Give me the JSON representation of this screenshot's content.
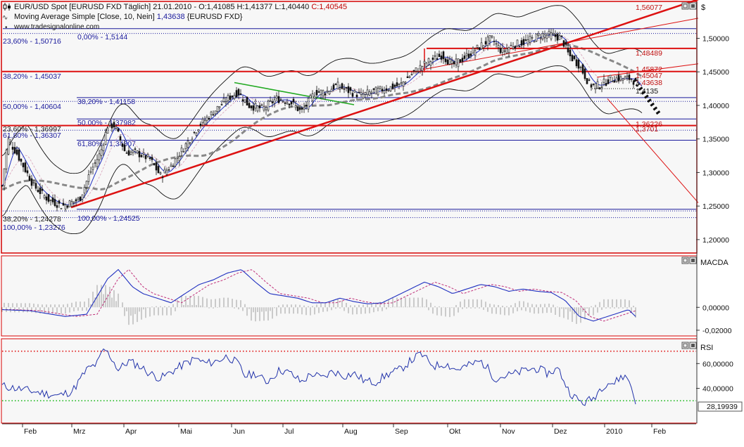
{
  "header": {
    "line1": "EUR/USD Spot [EURUSD FXD  Täglich] 21.01.2010 - O:1,41085 H:1,41377 L:1,40440 C:1,40545",
    "line1_prefix": "EUR/USD Spot [EURUSD FXD  Täglich] 21.01.2010 - O:1,41085 H:1,41377 L:1,40440 ",
    "line1_close": "C:1,40545",
    "line2": "Moving Average Simple [Close, 10, Nein] 1,43638 {EURUSD FXD}",
    "line2_prefix": "Moving Average Simple [Close, 10, Nein] ",
    "line2_value": "1,43638",
    "line2_suffix": " {EURUSD FXD}",
    "line3": "www.tradesignalonline.com"
  },
  "panels": {
    "price": {
      "axis_label": "$"
    },
    "macd": {
      "title": "MACDA"
    },
    "rsi": {
      "title": "RSI",
      "current_value": "28,19939"
    }
  },
  "colors": {
    "frame_red": "#d40000",
    "fib_blue": "#1a1a9c",
    "trend_red": "#dd1111",
    "green_line": "#22aa22",
    "rsi_line": "#2233aa",
    "upper_dotted": "#e01010",
    "lower_dotted": "#22bb22"
  },
  "fib_labels": [
    {
      "text": "0,00% - 1,5144",
      "color": "blue"
    },
    {
      "text": "23,60% - 1,50716",
      "color": "blue"
    },
    {
      "text": "38,20% - 1,45037",
      "color": "blue"
    },
    {
      "text": "38,20% - 1,41158",
      "color": "blue"
    },
    {
      "text": "50,00% - 1,40604",
      "color": "blue"
    },
    {
      "text": "50,00% - 1,37982",
      "color": "blue"
    },
    {
      "text": "23,60% - 1,36997",
      "color": "dark"
    },
    {
      "text": "61,80% - 1,36307",
      "color": "blue"
    },
    {
      "text": "61,80% - 1,34807",
      "color": "blue"
    },
    {
      "text": "38,20% - 1,24278",
      "color": "dark"
    },
    {
      "text": "100,00% - 1,23276",
      "color": "blue"
    },
    {
      "text": "100,00% - 1,24525",
      "color": "blue"
    }
  ],
  "red_labels": [
    "1,56077",
    "1,48489",
    "1,45872",
    "1,45047",
    "1,43638",
    "1,4135",
    "1,36226",
    "1,3701"
  ],
  "chart_data": [
    {
      "type": "candlestick",
      "title": "EUR/USD Spot [EURUSD FXD  Täglich] 21.01.2010",
      "ylabel": "$",
      "ylim": [
        1.18,
        1.555
      ],
      "yticks": [
        "1,20000",
        "1,25000",
        "1,30000",
        "1,35000",
        "1,40000",
        "1,45000",
        "1,50000"
      ],
      "ytick_values": [
        1.2,
        1.25,
        1.3,
        1.35,
        1.4,
        1.45,
        1.5
      ],
      "x_labels": [
        "Feb",
        "Mrz",
        "Apr",
        "Mai",
        "Jun",
        "Jul",
        "Aug",
        "Sep",
        "Okt",
        "Nov",
        "Dez",
        "2010",
        "Feb"
      ],
      "price_path": [
        [
          0,
          1.28
        ],
        [
          8,
          1.35
        ],
        [
          20,
          1.33
        ],
        [
          45,
          1.28
        ],
        [
          65,
          1.26
        ],
        [
          85,
          1.25
        ],
        [
          110,
          1.26
        ],
        [
          125,
          1.3
        ],
        [
          140,
          1.33
        ],
        [
          150,
          1.37
        ],
        [
          160,
          1.37
        ],
        [
          175,
          1.33
        ],
        [
          190,
          1.33
        ],
        [
          210,
          1.32
        ],
        [
          225,
          1.295
        ],
        [
          240,
          1.31
        ],
        [
          260,
          1.34
        ],
        [
          280,
          1.37
        ],
        [
          300,
          1.39
        ],
        [
          320,
          1.41
        ],
        [
          335,
          1.42
        ],
        [
          350,
          1.4
        ],
        [
          370,
          1.395
        ],
        [
          390,
          1.41
        ],
        [
          410,
          1.405
        ],
        [
          425,
          1.39
        ],
        [
          445,
          1.42
        ],
        [
          460,
          1.42
        ],
        [
          475,
          1.43
        ],
        [
          495,
          1.42
        ],
        [
          510,
          1.415
        ],
        [
          525,
          1.42
        ],
        [
          545,
          1.425
        ],
        [
          565,
          1.43
        ],
        [
          585,
          1.45
        ],
        [
          605,
          1.465
        ],
        [
          625,
          1.475
        ],
        [
          640,
          1.46
        ],
        [
          655,
          1.47
        ],
        [
          675,
          1.485
        ],
        [
          695,
          1.5
        ],
        [
          710,
          1.48
        ],
        [
          725,
          1.49
        ],
        [
          745,
          1.495
        ],
        [
          765,
          1.505
        ],
        [
          780,
          1.505
        ],
        [
          795,
          1.5
        ],
        [
          805,
          1.475
        ],
        [
          820,
          1.46
        ],
        [
          835,
          1.43
        ],
        [
          850,
          1.43
        ],
        [
          865,
          1.44
        ],
        [
          880,
          1.44
        ],
        [
          895,
          1.44
        ],
        [
          905,
          1.425
        ],
        [
          910,
          1.41
        ]
      ],
      "ma10": [
        1.43638
      ],
      "fib_levels": [
        1.5144,
        1.50716,
        1.45037,
        1.41158,
        1.40604,
        1.37982,
        1.36997,
        1.36307,
        1.34807,
        1.24278,
        1.23276,
        1.24525
      ],
      "red_levels": [
        1.56077,
        1.48489,
        1.45872,
        1.45047,
        1.43638,
        1.4135,
        1.36226,
        1.3701
      ]
    },
    {
      "type": "line",
      "title": "MACDA",
      "ylim": [
        -0.025,
        0.045
      ],
      "yticks": [
        "0,00000",
        "-0,02000"
      ],
      "ytick_values": [
        0.0,
        -0.02
      ],
      "series": [
        {
          "name": "MACD",
          "points": [
            [
              0,
              -0.002
            ],
            [
              40,
              -0.003
            ],
            [
              90,
              -0.008
            ],
            [
              120,
              -0.006
            ],
            [
              150,
              0.025
            ],
            [
              165,
              0.033
            ],
            [
              185,
              0.018
            ],
            [
              200,
              0.012
            ],
            [
              220,
              0.008
            ],
            [
              240,
              0.004
            ],
            [
              260,
              0.012
            ],
            [
              280,
              0.02
            ],
            [
              300,
              0.024
            ],
            [
              320,
              0.03
            ],
            [
              340,
              0.033
            ],
            [
              360,
              0.022
            ],
            [
              380,
              0.012
            ],
            [
              400,
              0.01
            ],
            [
              420,
              0.008
            ],
            [
              440,
              0.004
            ],
            [
              460,
              0.004
            ],
            [
              480,
              0.008
            ],
            [
              500,
              0.005
            ],
            [
              520,
              0.003
            ],
            [
              540,
              0.004
            ],
            [
              560,
              0.01
            ],
            [
              580,
              0.016
            ],
            [
              600,
              0.022
            ],
            [
              620,
              0.018
            ],
            [
              640,
              0.012
            ],
            [
              660,
              0.016
            ],
            [
              680,
              0.02
            ],
            [
              700,
              0.018
            ],
            [
              720,
              0.014
            ],
            [
              740,
              0.016
            ],
            [
              760,
              0.014
            ],
            [
              780,
              0.013
            ],
            [
              800,
              0.006
            ],
            [
              820,
              -0.008
            ],
            [
              840,
              -0.012
            ],
            [
              860,
              -0.008
            ],
            [
              880,
              -0.004
            ],
            [
              890,
              -0.002
            ],
            [
              900,
              -0.008
            ]
          ]
        }
      ]
    },
    {
      "type": "line",
      "title": "RSI",
      "ylim": [
        12,
        80
      ],
      "yticks": [
        "60,00000",
        "40,00000"
      ],
      "ytick_values": [
        60,
        40
      ],
      "levels": [
        70,
        30
      ],
      "series": [
        {
          "name": "RSI",
          "points": [
            [
              0,
              42
            ],
            [
              20,
              40
            ],
            [
              40,
              38
            ],
            [
              60,
              36
            ],
            [
              80,
              34
            ],
            [
              100,
              38
            ],
            [
              120,
              55
            ],
            [
              135,
              60
            ],
            [
              145,
              72
            ],
            [
              155,
              65
            ],
            [
              165,
              55
            ],
            [
              180,
              62
            ],
            [
              195,
              58
            ],
            [
              210,
              52
            ],
            [
              225,
              48
            ],
            [
              245,
              55
            ],
            [
              260,
              60
            ],
            [
              275,
              64
            ],
            [
              290,
              60
            ],
            [
              305,
              62
            ],
            [
              320,
              66
            ],
            [
              335,
              60
            ],
            [
              345,
              50
            ],
            [
              360,
              52
            ],
            [
              375,
              45
            ],
            [
              395,
              55
            ],
            [
              410,
              52
            ],
            [
              425,
              45
            ],
            [
              440,
              52
            ],
            [
              455,
              48
            ],
            [
              470,
              54
            ],
            [
              485,
              50
            ],
            [
              500,
              52
            ],
            [
              515,
              46
            ],
            [
              530,
              45
            ],
            [
              550,
              52
            ],
            [
              565,
              55
            ],
            [
              580,
              62
            ],
            [
              595,
              68
            ],
            [
              605,
              62
            ],
            [
              615,
              58
            ],
            [
              630,
              60
            ],
            [
              645,
              55
            ],
            [
              660,
              58
            ],
            [
              680,
              62
            ],
            [
              690,
              56
            ],
            [
              700,
              48
            ],
            [
              715,
              50
            ],
            [
              730,
              52
            ],
            [
              745,
              55
            ],
            [
              760,
              56
            ],
            [
              775,
              52
            ],
            [
              790,
              56
            ],
            [
              805,
              38
            ],
            [
              815,
              32
            ],
            [
              825,
              28
            ],
            [
              840,
              32
            ],
            [
              850,
              40
            ],
            [
              860,
              45
            ],
            [
              870,
              44
            ],
            [
              880,
              50
            ],
            [
              890,
              48
            ],
            [
              900,
              30
            ]
          ]
        }
      ]
    }
  ]
}
